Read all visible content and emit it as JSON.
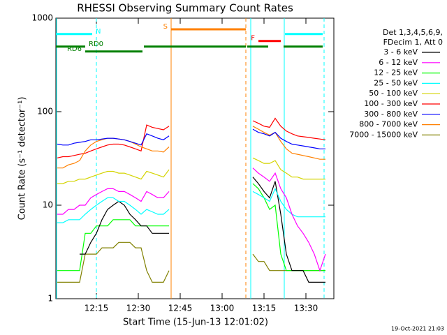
{
  "chart_data": {
    "type": "line",
    "title": "RHESSI Observing Summary Count Rates",
    "x_label": "Start Time (15-Jun-13 12:01:02)",
    "y_label": "Count Rate (s⁻¹ detector⁻¹)",
    "footer": "19-Oct-2021 21:03",
    "legend_title": [
      "Det 1,3,4,5,6,9,",
      "FDecim 1, Att 0"
    ],
    "log_y": true,
    "xlim": [
      0.5,
      100
    ],
    "xticks": [
      {
        "value": 15,
        "label": "12:15"
      },
      {
        "value": 30,
        "label": "12:30"
      },
      {
        "value": 45,
        "label": "12:45"
      },
      {
        "value": 60,
        "label": "13:00"
      },
      {
        "value": 75,
        "label": "13:15"
      },
      {
        "value": 90,
        "label": "13:30"
      }
    ],
    "ylim": [
      1,
      1000
    ],
    "yticks": [
      1,
      10,
      100,
      1000
    ],
    "x": [
      1,
      3,
      5,
      7,
      9,
      11,
      13,
      15,
      17,
      19,
      21,
      23,
      25,
      27,
      29,
      31,
      33,
      35,
      37,
      39,
      41,
      56,
      71,
      73,
      75,
      77,
      79,
      81,
      83,
      85,
      87,
      89,
      91,
      93,
      95,
      97
    ],
    "series": [
      {
        "name": "3 - 6 keV",
        "color": "#000000",
        "values": [
          null,
          null,
          null,
          null,
          3,
          3,
          4,
          5,
          7,
          9,
          10,
          11,
          10,
          8,
          7,
          6,
          6,
          5,
          5,
          5,
          5,
          null,
          20,
          17,
          14,
          12,
          18,
          8,
          3,
          2,
          2,
          2,
          1.5,
          1.5,
          1.5,
          1.5
        ]
      },
      {
        "name": "6 - 12 keV",
        "color": "#ff00ff",
        "values": [
          8,
          8,
          9,
          9,
          10,
          10,
          12,
          13,
          14,
          15,
          15,
          14,
          14,
          13,
          12,
          11,
          14,
          13,
          12,
          12,
          14,
          null,
          25,
          22,
          20,
          18,
          22,
          15,
          12,
          8,
          6,
          5,
          4,
          3,
          2,
          3
        ]
      },
      {
        "name": "12 - 25 keV",
        "color": "#00ff00",
        "values": [
          2,
          2,
          2,
          2,
          2,
          5,
          5,
          6,
          6,
          6,
          7,
          7,
          7,
          7,
          6,
          6,
          6,
          6,
          6,
          6,
          6,
          null,
          17,
          15,
          12,
          9,
          10,
          3,
          2,
          2,
          2,
          2,
          2,
          2,
          2,
          2
        ]
      },
      {
        "name": "25 - 50 keV",
        "color": "#00ffff",
        "values": [
          6.5,
          6.5,
          7,
          7,
          7,
          8,
          9,
          10,
          11,
          12,
          12,
          11,
          11,
          10,
          9,
          8,
          9,
          8.5,
          8,
          8,
          9,
          null,
          14,
          13,
          12,
          11,
          15,
          11,
          9,
          8,
          7.5,
          7.5,
          7.5,
          7.5,
          7.5,
          7.5
        ]
      },
      {
        "name": "50 - 100 keV",
        "color": "#d4d400",
        "values": [
          17,
          17,
          18,
          18,
          19,
          19,
          20,
          21,
          22,
          23,
          23,
          22,
          22,
          21,
          20,
          19,
          23,
          22,
          21,
          20,
          24,
          null,
          32,
          30,
          28,
          28,
          30,
          24,
          22,
          20,
          20,
          19,
          19,
          19,
          19,
          19
        ]
      },
      {
        "name": "100 - 300 keV",
        "color": "#ff0000",
        "values": [
          32,
          33,
          33,
          34,
          35,
          36,
          38,
          40,
          42,
          44,
          45,
          45,
          44,
          42,
          40,
          38,
          72,
          68,
          66,
          64,
          70,
          null,
          80,
          75,
          70,
          68,
          85,
          70,
          62,
          58,
          55,
          54,
          53,
          52,
          51,
          50
        ]
      },
      {
        "name": "300 - 800 keV",
        "color": "#0000ff",
        "values": [
          45,
          44,
          44,
          46,
          47,
          48,
          50,
          50,
          51,
          52,
          52,
          51,
          50,
          48,
          46,
          44,
          58,
          55,
          52,
          50,
          55,
          null,
          65,
          60,
          58,
          55,
          60,
          52,
          48,
          45,
          44,
          43,
          42,
          41,
          40,
          40
        ]
      },
      {
        "name": "800 - 7000 keV",
        "color": "#ff8000",
        "values": [
          25,
          25,
          27,
          28,
          30,
          38,
          44,
          48,
          50,
          52,
          52,
          51,
          50,
          48,
          45,
          42,
          40,
          38,
          38,
          37,
          42,
          null,
          70,
          65,
          60,
          56,
          60,
          48,
          40,
          36,
          35,
          34,
          33,
          32,
          31,
          31
        ]
      },
      {
        "name": "7000 - 15000 keV",
        "color": "#808000",
        "values": [
          1.5,
          1.5,
          1.5,
          1.5,
          1.5,
          3,
          3,
          3,
          3.5,
          3.5,
          3.5,
          4,
          4,
          4,
          3.5,
          3.5,
          2,
          1.5,
          1.5,
          1.5,
          2,
          null,
          3,
          2.5,
          2.5,
          2,
          2,
          2,
          2,
          2,
          2,
          2,
          2,
          2,
          2,
          2
        ]
      }
    ],
    "vlines": [
      {
        "x": 0.75,
        "color": "#00ffff",
        "dashed": false
      },
      {
        "x": 15,
        "color": "#00ffff",
        "dashed": true
      },
      {
        "x": 41.75,
        "color": "#ff8000",
        "dashed": false
      },
      {
        "x": 68.5,
        "color": "#ff8000",
        "dashed": true
      },
      {
        "x": 70.25,
        "color": "#00ffff",
        "dashed": false
      },
      {
        "x": 82.25,
        "color": "#00ffff",
        "dashed": false
      },
      {
        "x": 96.5,
        "color": "#00ffff",
        "dashed": true
      }
    ],
    "flags": [
      {
        "label": "N",
        "color": "#00ffff",
        "y": 676,
        "label_side": "right",
        "segments": [
          [
            0.5,
            13.5
          ],
          [
            82.5,
            96
          ]
        ]
      },
      {
        "label": "S",
        "color": "#ff8000",
        "y": 760,
        "label_side": "left",
        "segments": [
          [
            41.75,
            68.5
          ]
        ]
      },
      {
        "label": "F",
        "color": "#ff0000",
        "y": 570,
        "label_side": "left",
        "segments": [
          [
            73,
            81
          ]
        ]
      },
      {
        "label": "RD0",
        "color": "#008000",
        "y": 496,
        "label_side": "right",
        "segments": [
          [
            0.5,
            11
          ],
          [
            32,
            68.5
          ],
          [
            69,
            76.5
          ],
          [
            82,
            96
          ]
        ]
      },
      {
        "label": "RD6",
        "color": "#008000",
        "y": 440,
        "label_side": "left",
        "segments": [
          [
            11,
            31.5
          ]
        ]
      }
    ]
  }
}
